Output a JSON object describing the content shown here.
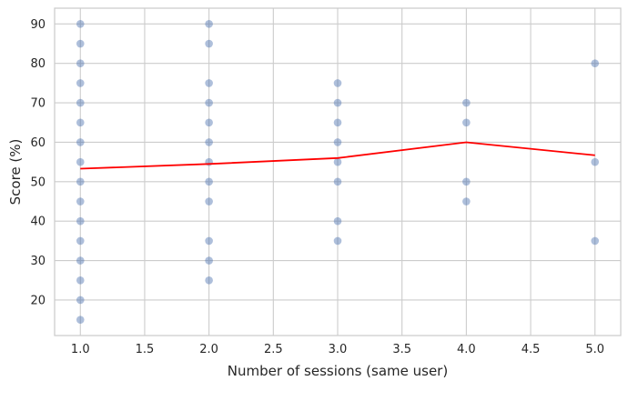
{
  "chart_data": {
    "type": "scatter",
    "title": "",
    "xlabel": "Number of sessions (same user)",
    "ylabel": "Score (%)",
    "xlim": [
      0.8,
      5.2
    ],
    "ylim": [
      11,
      94
    ],
    "x_ticks": [
      1.0,
      1.5,
      2.0,
      2.5,
      3.0,
      3.5,
      4.0,
      4.5,
      5.0
    ],
    "x_tick_labels": [
      "1.0",
      "1.5",
      "2.0",
      "2.5",
      "3.0",
      "3.5",
      "4.0",
      "4.5",
      "5.0"
    ],
    "y_ticks": [
      20,
      30,
      40,
      50,
      60,
      70,
      80,
      90
    ],
    "y_tick_labels": [
      "20",
      "30",
      "40",
      "50",
      "60",
      "70",
      "80",
      "90"
    ],
    "grid": true,
    "series": [
      {
        "kind": "scatter",
        "color": "#4c72b0",
        "opacity": 0.45,
        "points": [
          {
            "x": 1,
            "y": 15
          },
          {
            "x": 1,
            "y": 20
          },
          {
            "x": 1,
            "y": 25
          },
          {
            "x": 1,
            "y": 30
          },
          {
            "x": 1,
            "y": 35
          },
          {
            "x": 1,
            "y": 40
          },
          {
            "x": 1,
            "y": 45
          },
          {
            "x": 1,
            "y": 50
          },
          {
            "x": 1,
            "y": 55
          },
          {
            "x": 1,
            "y": 60
          },
          {
            "x": 1,
            "y": 65
          },
          {
            "x": 1,
            "y": 70
          },
          {
            "x": 1,
            "y": 75
          },
          {
            "x": 1,
            "y": 80
          },
          {
            "x": 1,
            "y": 85
          },
          {
            "x": 1,
            "y": 90
          },
          {
            "x": 2,
            "y": 25
          },
          {
            "x": 2,
            "y": 30
          },
          {
            "x": 2,
            "y": 35
          },
          {
            "x": 2,
            "y": 45
          },
          {
            "x": 2,
            "y": 50
          },
          {
            "x": 2,
            "y": 55
          },
          {
            "x": 2,
            "y": 60
          },
          {
            "x": 2,
            "y": 65
          },
          {
            "x": 2,
            "y": 70
          },
          {
            "x": 2,
            "y": 75
          },
          {
            "x": 2,
            "y": 85
          },
          {
            "x": 2,
            "y": 90
          },
          {
            "x": 3,
            "y": 35
          },
          {
            "x": 3,
            "y": 40
          },
          {
            "x": 3,
            "y": 50
          },
          {
            "x": 3,
            "y": 55
          },
          {
            "x": 3,
            "y": 60
          },
          {
            "x": 3,
            "y": 65
          },
          {
            "x": 3,
            "y": 70
          },
          {
            "x": 3,
            "y": 75
          },
          {
            "x": 4,
            "y": 45
          },
          {
            "x": 4,
            "y": 50
          },
          {
            "x": 4,
            "y": 65
          },
          {
            "x": 4,
            "y": 70
          },
          {
            "x": 5,
            "y": 35
          },
          {
            "x": 5,
            "y": 55
          },
          {
            "x": 5,
            "y": 80
          }
        ]
      },
      {
        "kind": "line",
        "color": "#ff0000",
        "points": [
          {
            "x": 1,
            "y": 53.3
          },
          {
            "x": 2,
            "y": 54.5
          },
          {
            "x": 3,
            "y": 56.0
          },
          {
            "x": 4,
            "y": 60.0
          },
          {
            "x": 5,
            "y": 56.7
          }
        ]
      }
    ]
  }
}
